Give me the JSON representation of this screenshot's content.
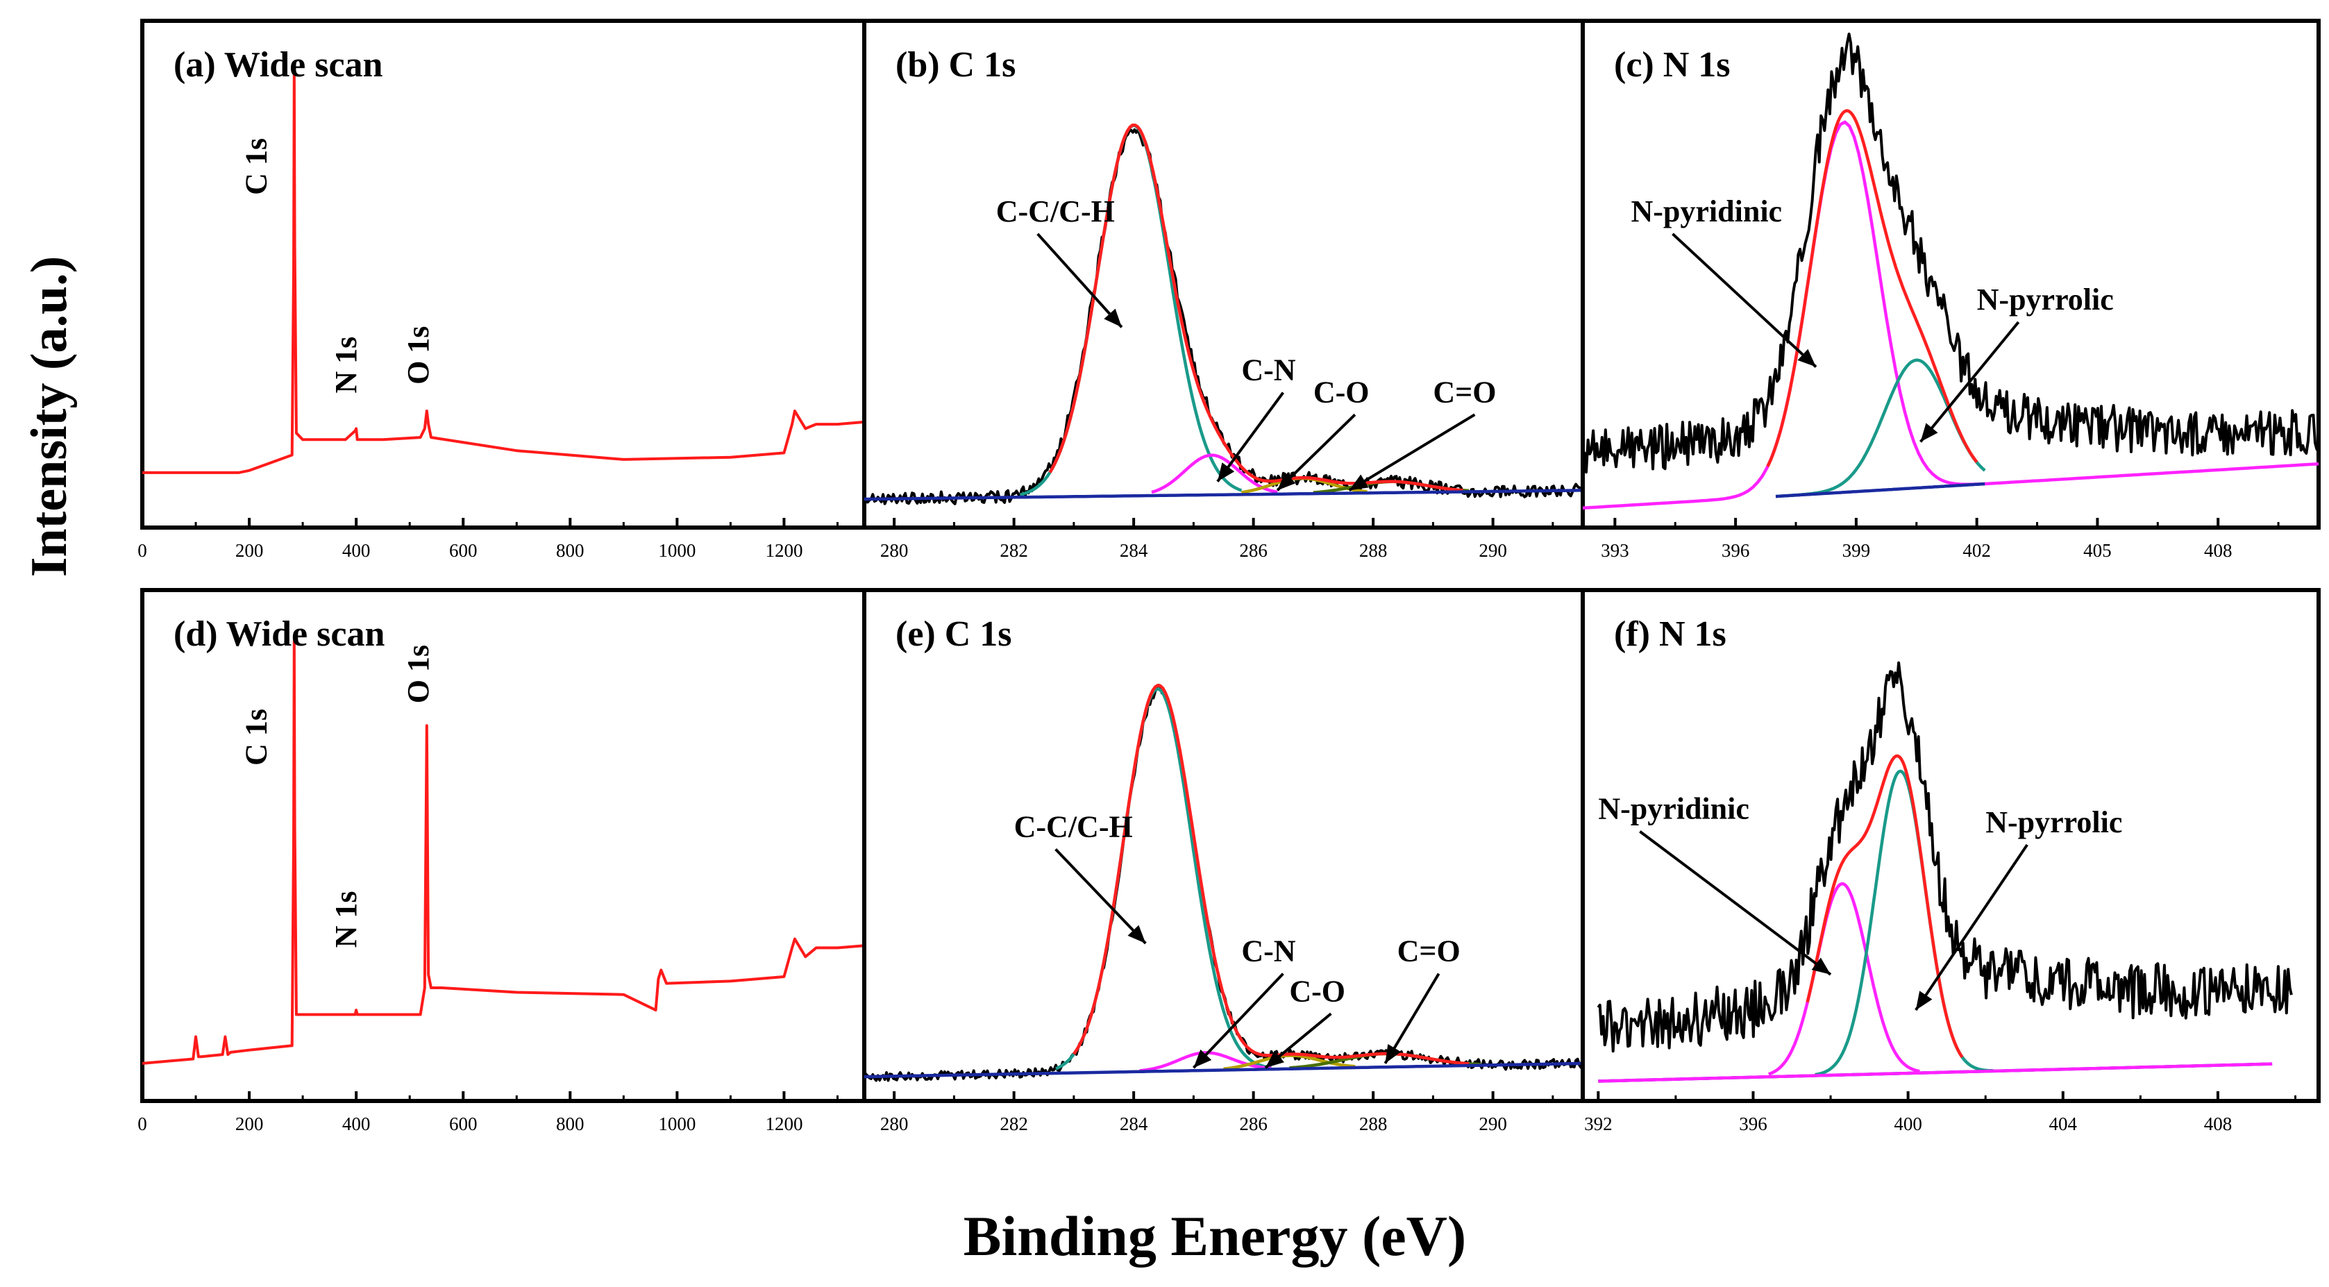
{
  "figure": {
    "ylabel": "Intensity (a.u.)",
    "xlabel": "Binding Energy (eV)"
  },
  "colors": {
    "survey": "#ff1a1a",
    "raw": "#000000",
    "envelope": "#ff2020",
    "main_peak": "#1a9a8a",
    "second_peak": "#ff22ff",
    "co_peak": "#b5a000",
    "co_double_peak": "#4a7000",
    "background": "#1a2aa0"
  },
  "chart_data": [
    {
      "id": "a",
      "type": "line",
      "title": "(a) Wide scan",
      "xlim": [
        0,
        1350
      ],
      "ylim": [
        0,
        100
      ],
      "xticks": [
        "0",
        "200",
        "400",
        "600",
        "800",
        "1000",
        "1200"
      ],
      "xtick_values": [
        0,
        200,
        400,
        600,
        800,
        1000,
        1200
      ],
      "series": [
        {
          "name": "survey",
          "color_key": "survey",
          "x": [
            0,
            180,
            200,
            280,
            283,
            284,
            285,
            288,
            300,
            380,
            398,
            400,
            402,
            450,
            520,
            528,
            532,
            535,
            540,
            700,
            900,
            1100,
            1200,
            1215,
            1220,
            1225,
            1240,
            1260,
            1300,
            1350
          ],
          "y": [
            9,
            9,
            9.5,
            13,
            55,
            100,
            60,
            18,
            16.5,
            16.5,
            18.5,
            19,
            16.5,
            16.5,
            17,
            19,
            23,
            20,
            17,
            14,
            12,
            12.5,
            13.5,
            20,
            23,
            22,
            19,
            20,
            20,
            20.5
          ]
        }
      ],
      "annotations": [
        {
          "text": "C 1s",
          "x": 232,
          "y": 72
        },
        {
          "text": "N 1s",
          "x": 400,
          "y": 27
        },
        {
          "text": "O 1s",
          "x": 535,
          "y": 29
        }
      ]
    },
    {
      "id": "b",
      "type": "line",
      "title": "(b) C 1s",
      "xlim": [
        279.5,
        291.5
      ],
      "ylim": [
        0,
        100
      ],
      "xticks": [
        "280",
        "282",
        "284",
        "286",
        "288",
        "290"
      ],
      "xtick_values": [
        280,
        282,
        284,
        286,
        288,
        290
      ],
      "series": [
        {
          "name": "raw",
          "color_key": "raw",
          "type": "gauss-sum",
          "noise": 1.2,
          "peaks": [
            [
              284.0,
              83,
              0.62
            ],
            [
              285.3,
              9,
              0.45
            ],
            [
              286.8,
              3.5,
              0.5
            ],
            [
              288.3,
              2.5,
              0.6
            ]
          ],
          "baseline": [
            279.5,
            3,
            291.5,
            5
          ]
        },
        {
          "name": "C-C/C-H",
          "color_key": "main_peak",
          "type": "gauss",
          "peak": [
            284.0,
            84,
            0.6
          ],
          "baseline": [
            279.5,
            3,
            291.5,
            5
          ],
          "xrange": [
            282.1,
            285.8
          ]
        },
        {
          "name": "C-N",
          "color_key": "second_peak",
          "type": "gauss",
          "peak": [
            285.3,
            9,
            0.45
          ],
          "baseline": [
            279.5,
            3,
            291.5,
            5
          ],
          "xrange": [
            284.3,
            286.4
          ]
        },
        {
          "name": "C-O",
          "color_key": "co_peak",
          "type": "gauss",
          "peak": [
            286.8,
            3.5,
            0.5
          ],
          "baseline": [
            279.5,
            3,
            291.5,
            5
          ],
          "xrange": [
            285.8,
            287.9
          ]
        },
        {
          "name": "C=O",
          "color_key": "co_double_peak",
          "type": "gauss",
          "peak": [
            288.3,
            2.5,
            0.6
          ],
          "baseline": [
            279.5,
            3,
            291.5,
            5
          ],
          "xrange": [
            287.0,
            289.6
          ]
        },
        {
          "name": "envelope",
          "color_key": "envelope",
          "type": "gauss-sum",
          "peaks": [
            [
              284.0,
              84,
              0.6
            ],
            [
              285.3,
              9,
              0.45
            ],
            [
              286.8,
              3.5,
              0.5
            ],
            [
              288.3,
              2.5,
              0.6
            ]
          ],
          "baseline": [
            279.5,
            3,
            291.5,
            5
          ],
          "xrange": [
            282.6,
            289.5
          ]
        },
        {
          "name": "background",
          "color_key": "background",
          "type": "baseline",
          "baseline": [
            279.5,
            3,
            291.5,
            5
          ],
          "xrange": [
            279.5,
            291.5
          ]
        }
      ],
      "annotations": [
        {
          "text": "C-C/C-H",
          "x": 281.7,
          "y": 66,
          "arrow_to": [
            283.8,
            42
          ]
        },
        {
          "text": "C-N",
          "x": 285.8,
          "y": 30,
          "arrow_to": [
            285.4,
            7
          ]
        },
        {
          "text": "C-O",
          "x": 287.0,
          "y": 25,
          "arrow_to": [
            286.4,
            5
          ]
        },
        {
          "text": "C=O",
          "x": 289.0,
          "y": 25,
          "arrow_to": [
            287.6,
            5
          ]
        }
      ]
    },
    {
      "id": "c",
      "type": "line",
      "title": "(c) N 1s",
      "xlim": [
        392.2,
        410.5
      ],
      "ylim": [
        0,
        100
      ],
      "xticks": [
        "393",
        "396",
        "399",
        "402",
        "405",
        "408"
      ],
      "xtick_values": [
        393,
        396,
        399,
        402,
        405,
        408
      ],
      "series": [
        {
          "name": "raw",
          "color_key": "raw",
          "type": "gauss-sum",
          "noise": 4.5,
          "peaks": [
            [
              398.7,
              80,
              0.9
            ],
            [
              400.5,
              28,
              0.85
            ]
          ],
          "baseline": [
            392.2,
            14,
            410.5,
            18
          ],
          "extra": 6
        },
        {
          "name": "N-pyridinic",
          "color_key": "second_peak",
          "type": "gauss",
          "peak": [
            398.7,
            84,
            0.85
          ],
          "baseline": [
            392.2,
            1,
            410.5,
            11
          ],
          "xrange": [
            392.2,
            410.5
          ]
        },
        {
          "name": "N-pyrrolic",
          "color_key": "main_peak",
          "type": "gauss",
          "peak": [
            400.5,
            29,
            0.8
          ],
          "baseline": [
            392.2,
            1,
            410.5,
            11
          ],
          "xrange": [
            397.0,
            402.2
          ]
        },
        {
          "name": "envelope",
          "color_key": "envelope",
          "type": "gauss-sum",
          "peaks": [
            [
              398.7,
              84,
              0.85
            ],
            [
              400.5,
              29,
              0.8
            ]
          ],
          "baseline": [
            392.2,
            1,
            410.5,
            11
          ],
          "xrange": [
            396.8,
            402.0
          ]
        },
        {
          "name": "background",
          "color_key": "background",
          "type": "baseline",
          "baseline": [
            392.2,
            1,
            410.5,
            11
          ],
          "xrange": [
            397.0,
            402.2
          ]
        }
      ],
      "annotations": [
        {
          "text": "N-pyridinic",
          "x": 393.4,
          "y": 66,
          "arrow_to": [
            398.0,
            33
          ]
        },
        {
          "text": "N-pyrrolic",
          "x": 402.0,
          "y": 46,
          "arrow_to": [
            400.6,
            16
          ]
        }
      ]
    },
    {
      "id": "d",
      "type": "line",
      "title": "(d) Wide scan",
      "xlim": [
        0,
        1350
      ],
      "ylim": [
        0,
        100
      ],
      "xticks": [
        "0",
        "200",
        "400",
        "600",
        "800",
        "1000",
        "1200"
      ],
      "xtick_values": [
        0,
        200,
        400,
        600,
        800,
        1000,
        1200
      ],
      "series": [
        {
          "name": "survey",
          "color_key": "survey",
          "x": [
            0,
            95,
            100,
            105,
            110,
            150,
            155,
            160,
            165,
            200,
            280,
            283,
            284,
            285,
            288,
            300,
            398,
            400,
            402,
            520,
            528,
            532,
            535,
            540,
            560,
            700,
            900,
            960,
            965,
            970,
            980,
            1100,
            1200,
            1215,
            1220,
            1225,
            1240,
            1260,
            1300,
            1350
          ],
          "y": [
            5,
            6,
            11,
            6.5,
            6.5,
            7,
            11,
            7,
            7.5,
            8,
            9,
            55,
            100,
            58,
            16,
            16,
            16,
            17,
            16,
            16,
            22,
            81,
            25,
            22,
            22,
            21,
            20.5,
            17,
            24,
            26,
            23,
            23.5,
            24.5,
            31,
            33,
            32,
            29,
            31,
            31,
            31.5
          ]
        }
      ],
      "annotations": [
        {
          "text": "C 1s",
          "x": 232,
          "y": 72
        },
        {
          "text": "N 1s",
          "x": 400,
          "y": 31
        },
        {
          "text": "O 1s",
          "x": 535,
          "y": 86
        }
      ]
    },
    {
      "id": "e",
      "type": "line",
      "title": "(e) C 1s",
      "xlim": [
        279.5,
        291.5
      ],
      "ylim": [
        0,
        100
      ],
      "xticks": [
        "280",
        "282",
        "284",
        "286",
        "288",
        "290"
      ],
      "xtick_values": [
        280,
        282,
        284,
        286,
        288,
        290
      ],
      "series": [
        {
          "name": "raw",
          "color_key": "raw",
          "type": "gauss-sum",
          "noise": 0.9,
          "peaks": [
            [
              284.4,
              85,
              0.57
            ],
            [
              285.2,
              4,
              0.45
            ],
            [
              286.6,
              3,
              0.5
            ],
            [
              288.2,
              3,
              0.7
            ]
          ],
          "baseline": [
            279.5,
            2,
            291.5,
            5
          ]
        },
        {
          "name": "C-C/C-H",
          "color_key": "main_peak",
          "type": "gauss",
          "peak": [
            284.4,
            86,
            0.57
          ],
          "baseline": [
            279.5,
            2,
            291.5,
            5
          ],
          "xrange": [
            282.7,
            286.3
          ]
        },
        {
          "name": "C-N",
          "color_key": "second_peak",
          "type": "gauss",
          "peak": [
            285.2,
            4,
            0.45
          ],
          "baseline": [
            279.5,
            2,
            291.5,
            5
          ],
          "xrange": [
            284.1,
            286.3
          ]
        },
        {
          "name": "C-O",
          "color_key": "co_peak",
          "type": "gauss",
          "peak": [
            286.6,
            3,
            0.5
          ],
          "baseline": [
            279.5,
            2,
            291.5,
            5
          ],
          "xrange": [
            285.5,
            287.7
          ]
        },
        {
          "name": "C=O",
          "color_key": "co_double_peak",
          "type": "gauss",
          "peak": [
            288.2,
            3,
            0.7
          ],
          "baseline": [
            279.5,
            2,
            291.5,
            5
          ],
          "xrange": [
            286.6,
            289.8
          ]
        },
        {
          "name": "envelope",
          "color_key": "envelope",
          "type": "gauss-sum",
          "peaks": [
            [
              284.4,
              86,
              0.57
            ],
            [
              285.2,
              4,
              0.45
            ],
            [
              286.6,
              3,
              0.5
            ],
            [
              288.2,
              3,
              0.7
            ]
          ],
          "baseline": [
            279.5,
            2,
            291.5,
            5
          ],
          "xrange": [
            283.0,
            289.6
          ]
        },
        {
          "name": "background",
          "color_key": "background",
          "type": "baseline",
          "baseline": [
            279.5,
            2,
            291.5,
            5
          ],
          "xrange": [
            279.5,
            291.5
          ]
        }
      ],
      "annotations": [
        {
          "text": "C-C/C-H",
          "x": 282.0,
          "y": 56,
          "arrow_to": [
            284.2,
            32
          ]
        },
        {
          "text": "C-N",
          "x": 285.8,
          "y": 28,
          "arrow_to": [
            285.0,
            4
          ]
        },
        {
          "text": "C-O",
          "x": 286.6,
          "y": 19,
          "arrow_to": [
            286.2,
            4
          ]
        },
        {
          "text": "C=O",
          "x": 288.4,
          "y": 28,
          "arrow_to": [
            288.2,
            5
          ]
        }
      ]
    },
    {
      "id": "f",
      "type": "line",
      "title": "(f) N 1s",
      "xlim": [
        391.6,
        410.6
      ],
      "ylim": [
        0,
        100
      ],
      "xticks": [
        "392",
        "396",
        "400",
        "404",
        "408"
      ],
      "xtick_values": [
        392,
        396,
        400,
        404,
        408
      ],
      "series": [
        {
          "name": "raw",
          "color_key": "raw",
          "type": "gauss-sum",
          "noise": 5.5,
          "xrange": [
            392.0,
            409.9
          ],
          "peaks": [
            [
              398.3,
              34,
              0.7
            ],
            [
              399.8,
              62,
              0.7
            ]
          ],
          "baseline": [
            392.0,
            13,
            409.9,
            22
          ],
          "extra": 8
        },
        {
          "name": "N-pyridinic",
          "color_key": "second_peak",
          "type": "gauss",
          "peak": [
            398.3,
            43,
            0.65
          ],
          "baseline": [
            392.0,
            1,
            409.9,
            5
          ],
          "xrange": [
            396.4,
            400.3
          ]
        },
        {
          "name": "N-pyrrolic",
          "color_key": "main_peak",
          "type": "gauss",
          "peak": [
            399.8,
            68,
            0.65
          ],
          "baseline": [
            392.0,
            1,
            409.9,
            5
          ],
          "xrange": [
            397.6,
            402.2
          ]
        },
        {
          "name": "envelope",
          "color_key": "envelope",
          "type": "gauss-sum",
          "peaks": [
            [
              398.3,
              43,
              0.65
            ],
            [
              399.8,
              68,
              0.65
            ]
          ],
          "baseline": [
            392.0,
            1,
            409.9,
            5
          ],
          "xrange": [
            397.4,
            401.4
          ]
        },
        {
          "name": "background",
          "color_key": "background",
          "type": "baseline",
          "baseline": [
            392.0,
            1,
            409.9,
            5
          ],
          "xrange": [
            392.0,
            409.4
          ]
        },
        {
          "name": "background-upper",
          "color_key": "second_peak",
          "type": "baseline",
          "baseline": [
            392.0,
            1,
            409.9,
            5
          ],
          "xrange": [
            392.0,
            409.4
          ]
        }
      ],
      "annotations": [
        {
          "text": "N-pyridinic",
          "x": 392.0,
          "y": 60,
          "arrow_to": [
            398.0,
            25
          ]
        },
        {
          "text": "N-pyrrolic",
          "x": 402.0,
          "y": 57,
          "arrow_to": [
            400.2,
            17
          ]
        }
      ]
    }
  ]
}
